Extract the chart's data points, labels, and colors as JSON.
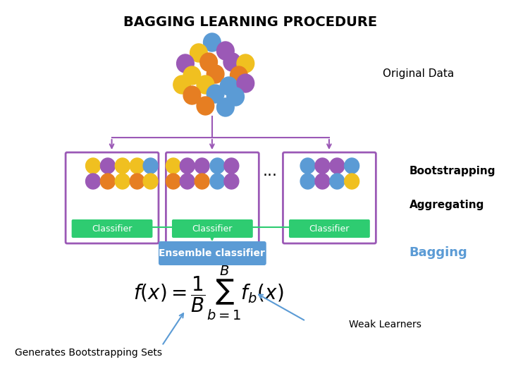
{
  "title": "BAGGING LEARNING PROCEDURE",
  "bg_color": "#ffffff",
  "title_fontsize": 14,
  "title_fontweight": "bold",
  "original_data_label": "Original Data",
  "bootstrapping_label": "Bootstrapping",
  "aggregating_label": "Aggregating",
  "bagging_label": "Bagging",
  "classifier_label": "Classifier",
  "ensemble_label": "Ensemble classifier",
  "dots_label": "...",
  "weak_learners_label": "Weak Learners",
  "bootstrap_sets_label": "Generates Bootstrapping Sets",
  "arrow_color": "#5b9bd5",
  "box_border_color": "#9b59b6",
  "classifier_bg": "#2ecc71",
  "ensemble_bg": "#5b9bd5",
  "colors": {
    "yellow": "#f0c020",
    "purple": "#9b59b6",
    "orange": "#e67e22",
    "blue": "#5b9bd5",
    "light_blue": "#5dade2"
  },
  "connector_color": "#2ecc71",
  "top_connector_color": "#9b59b6"
}
